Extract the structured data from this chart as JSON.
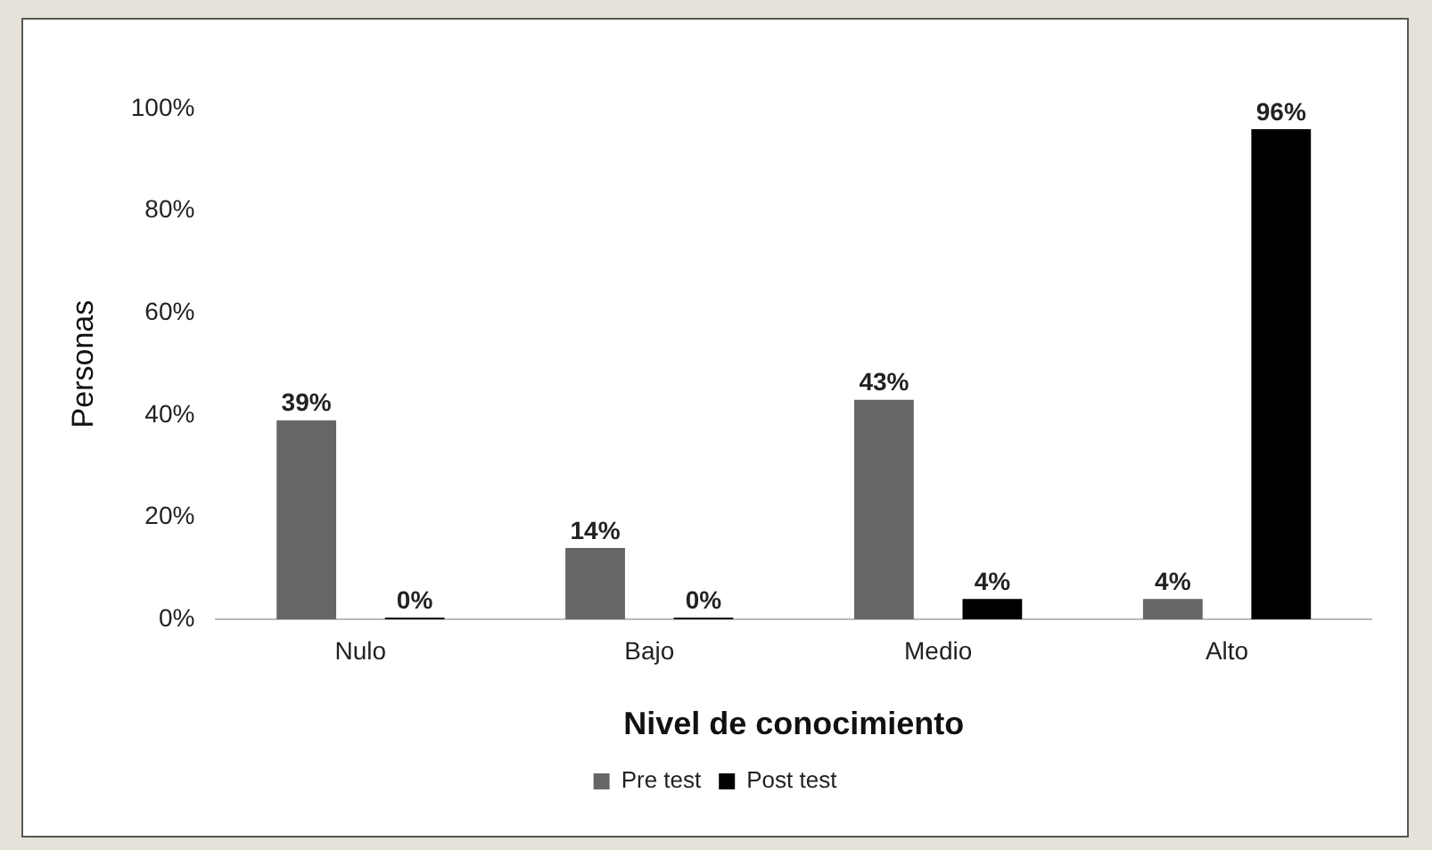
{
  "chart_data": {
    "type": "bar",
    "xlabel": "Nivel de conocimiento",
    "ylabel": "Personas",
    "categories": [
      "Nulo",
      "Bajo",
      "Medio",
      "Alto"
    ],
    "series": [
      {
        "name": "Pre test",
        "color": "#666666",
        "values": [
          39,
          14,
          43,
          4
        ],
        "value_labels": [
          "39%",
          "14%",
          "43%",
          "4%"
        ]
      },
      {
        "name": "Post test",
        "color": "#000000",
        "values": [
          0,
          0,
          4,
          96
        ],
        "value_labels": [
          "0%",
          "0%",
          "4%",
          "96%"
        ]
      }
    ],
    "ylim": [
      0,
      100
    ],
    "yticks": [
      {
        "value": 0,
        "label": "0%"
      },
      {
        "value": 20,
        "label": "20%"
      },
      {
        "value": 40,
        "label": "40%"
      },
      {
        "value": 60,
        "label": "60%"
      },
      {
        "value": 80,
        "label": "80%"
      },
      {
        "value": 100,
        "label": "100%"
      }
    ],
    "grid": false,
    "legend": "bottom"
  }
}
